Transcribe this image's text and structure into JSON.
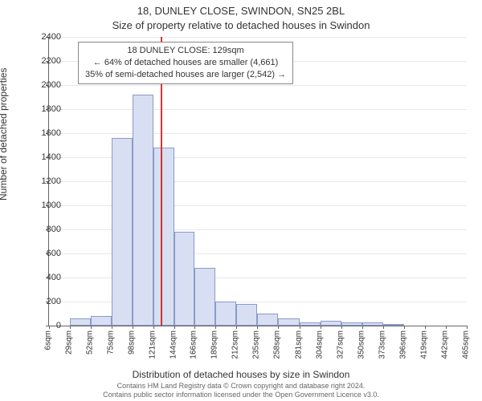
{
  "title_line1": "18, DUNLEY CLOSE, SWINDON, SN25 2BL",
  "title_line2": "Size of property relative to detached houses in Swindon",
  "ylabel": "Number of detached properties",
  "xlabel": "Distribution of detached houses by size in Swindon",
  "footer_line1": "Contains HM Land Registry data © Crown copyright and database right 2024.",
  "footer_line2": "Contains public sector information licensed under the Open Government Licence v3.0.",
  "annotation": {
    "line1": "18 DUNLEY CLOSE: 129sqm",
    "line2": "← 64% of detached houses are smaller (4,661)",
    "line3": "35% of semi-detached houses are larger (2,542) →"
  },
  "chart": {
    "type": "histogram",
    "background_color": "#ffffff",
    "grid_color": "#e8e8e8",
    "bar_fill": "#d8dff2",
    "bar_border": "#8a9bc9",
    "marker_color": "#d63333",
    "marker_x": 129,
    "ylim": [
      0,
      2400
    ],
    "ytick_step": 200,
    "x_categories": [
      "6sqm",
      "29sqm",
      "52sqm",
      "75sqm",
      "98sqm",
      "121sqm",
      "144sqm",
      "166sqm",
      "189sqm",
      "212sqm",
      "235sqm",
      "258sqm",
      "281sqm",
      "304sqm",
      "327sqm",
      "350sqm",
      "373sqm",
      "396sqm",
      "419sqm",
      "442sqm",
      "465sqm"
    ],
    "x_edges": [
      6,
      29,
      52,
      75,
      98,
      121,
      144,
      166,
      189,
      212,
      235,
      258,
      281,
      304,
      327,
      350,
      373,
      396,
      419,
      442,
      465
    ],
    "values": [
      0,
      60,
      80,
      1560,
      1920,
      1480,
      780,
      480,
      200,
      180,
      100,
      60,
      30,
      40,
      30,
      30,
      10,
      0,
      0,
      0
    ],
    "title_fontsize": 13,
    "label_fontsize": 12,
    "tick_fontsize": 11
  }
}
